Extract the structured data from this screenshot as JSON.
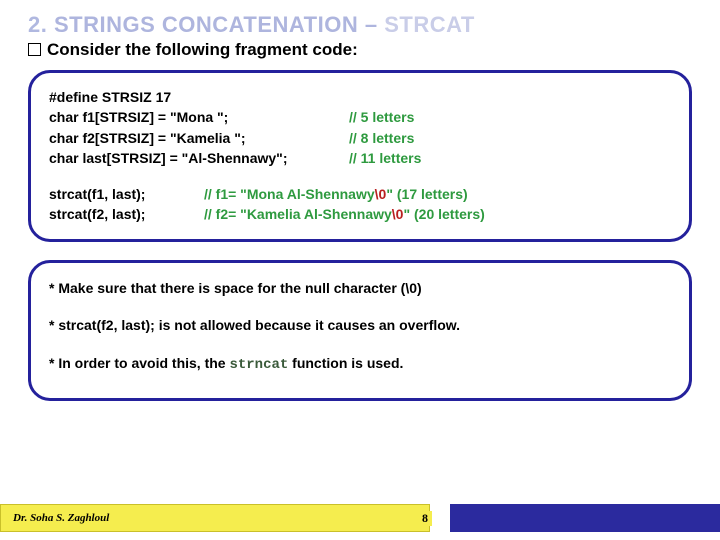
{
  "title": {
    "num": "2.",
    "text": "STRINGS CONCATENATION –",
    "strcat": "STRCAT"
  },
  "subtitle": "Consider the following fragment code:",
  "code": {
    "lines": [
      {
        "left": "#define STRSIZ 17",
        "right": ""
      },
      {
        "left": "char f1[STRSIZ] = \"Mona \";",
        "right": "// 5 letters"
      },
      {
        "left": "char f2[STRSIZ] = \"Kamelia \";",
        "right": "// 8 letters"
      },
      {
        "left": "char last[STRSIZ] = \"Al-Shennawy\";",
        "right": "// 11 letters"
      }
    ],
    "calls": [
      "strcat(f1, last);",
      "strcat(f2, last);"
    ],
    "comments": [
      {
        "pre": "// f1= \"Mona Al-Shennawy",
        "nul": "\\0",
        "post": "\"    (17 letters)"
      },
      {
        "pre": "// f2= \"Kamelia Al-Shennawy",
        "nul": "\\0",
        "post": "\" (20 letters)"
      }
    ]
  },
  "notes": {
    "n1": "* Make sure that there is space for the null character (\\0)",
    "n2": "* strcat(f2, last);  is not allowed because it causes an overflow.",
    "n3_pre": "* In order to avoid this, the ",
    "n3_fn": "strncat",
    "n3_post": " function is used."
  },
  "footer": {
    "author": "Dr. Soha S. Zaghloul",
    "page": "8"
  }
}
